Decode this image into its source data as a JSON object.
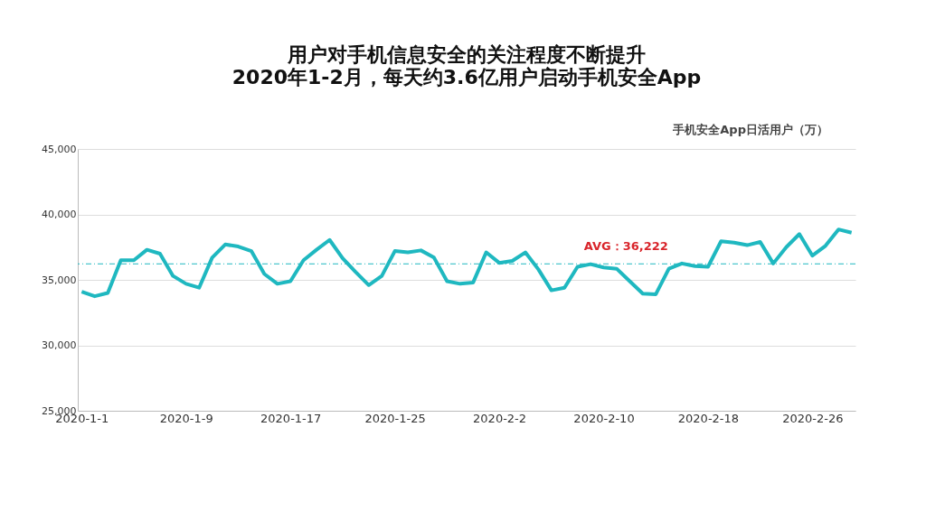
{
  "chart_data": {
    "type": "line",
    "title": "用户对手机信息安全的关注程度不断提升",
    "subtitle": "2020年1-2月，每天约3.6亿用户启动手机安全App",
    "ylabel": "手机安全App日活用户（万）",
    "categories": [
      "2020-1-1",
      null,
      null,
      null,
      null,
      null,
      null,
      null,
      "2020-1-9",
      null,
      null,
      null,
      null,
      null,
      null,
      null,
      "2020-1-17",
      null,
      null,
      null,
      null,
      null,
      null,
      null,
      "2020-1-25",
      null,
      null,
      null,
      null,
      null,
      null,
      null,
      "2020-2-2",
      null,
      null,
      null,
      null,
      null,
      null,
      null,
      "2020-2-10",
      null,
      null,
      null,
      null,
      null,
      null,
      null,
      "2020-2-18",
      null,
      null,
      null,
      null,
      null,
      null,
      null,
      "2020-2-26",
      null,
      null,
      null
    ],
    "series": [
      {
        "color": "#1fb8c0",
        "values": [
          34100,
          33750,
          34000,
          36500,
          36500,
          37300,
          37000,
          35300,
          34700,
          34400,
          36700,
          37700,
          37550,
          37200,
          35450,
          34700,
          34900,
          36500,
          37300,
          38050,
          36650,
          35600,
          34600,
          35300,
          37200,
          37100,
          37250,
          36700,
          34900,
          34700,
          34800,
          37100,
          36300,
          36450,
          37100,
          35800,
          34200,
          34400,
          36000,
          36200,
          35950,
          35850,
          34900,
          33950,
          33900,
          35850,
          36250,
          36050,
          36000,
          37950,
          37850,
          37650,
          37900,
          36250,
          37500,
          38500,
          36850,
          37600,
          38850,
          38600
        ]
      }
    ],
    "ylim": [
      25000,
      45000
    ],
    "yticks": [
      {
        "value": 25000,
        "label": "25,000"
      },
      {
        "value": 30000,
        "label": "30,000"
      },
      {
        "value": 35000,
        "label": "35,000"
      },
      {
        "value": 40000,
        "label": "40,000"
      },
      {
        "value": 45000,
        "label": "45,000"
      }
    ],
    "grid": "y",
    "marker": "none",
    "line_style": "solid",
    "ref_lines": [
      {
        "axis": "y",
        "value": 36222,
        "label": "AVG：36,222",
        "color": "#1fb8c0",
        "line_style": "dashdot"
      }
    ]
  }
}
